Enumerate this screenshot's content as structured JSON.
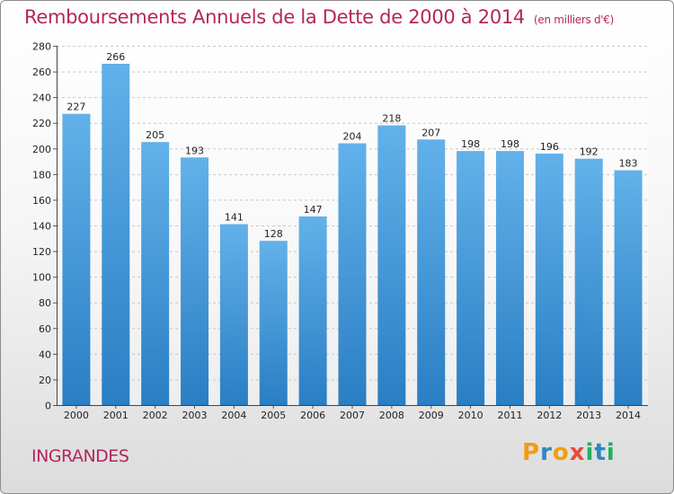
{
  "header": {
    "title": "Remboursements Annuels de la Dette de 2000 à 2014",
    "unit": "(en milliers d'€)"
  },
  "footer": {
    "commune": "INGRANDES",
    "logo_letters": [
      "P",
      "r",
      "o",
      "x",
      "i",
      "t",
      "i"
    ],
    "logo_colors": [
      "#f39c12",
      "#2e86c1",
      "#f39c12",
      "#e74c3c",
      "#27ae60",
      "#2e86c1",
      "#27ae60"
    ]
  },
  "chart_data": {
    "type": "bar",
    "title": "Remboursements Annuels de la Dette de 2000 à 2014",
    "xlabel": "",
    "ylabel": "",
    "categories": [
      "2000",
      "2001",
      "2002",
      "2003",
      "2004",
      "2005",
      "2006",
      "2007",
      "2008",
      "2009",
      "2010",
      "2011",
      "2012",
      "2013",
      "2014"
    ],
    "values": [
      227,
      266,
      205,
      193,
      141,
      128,
      147,
      204,
      218,
      207,
      198,
      198,
      196,
      192,
      183
    ],
    "ylim": [
      0,
      280
    ],
    "yticks": [
      0,
      20,
      40,
      60,
      80,
      100,
      120,
      140,
      160,
      180,
      200,
      220,
      240,
      260,
      280
    ],
    "grid": true,
    "bar_color_top": "#62b1ea",
    "bar_color_bottom": "#2a7ec3"
  }
}
